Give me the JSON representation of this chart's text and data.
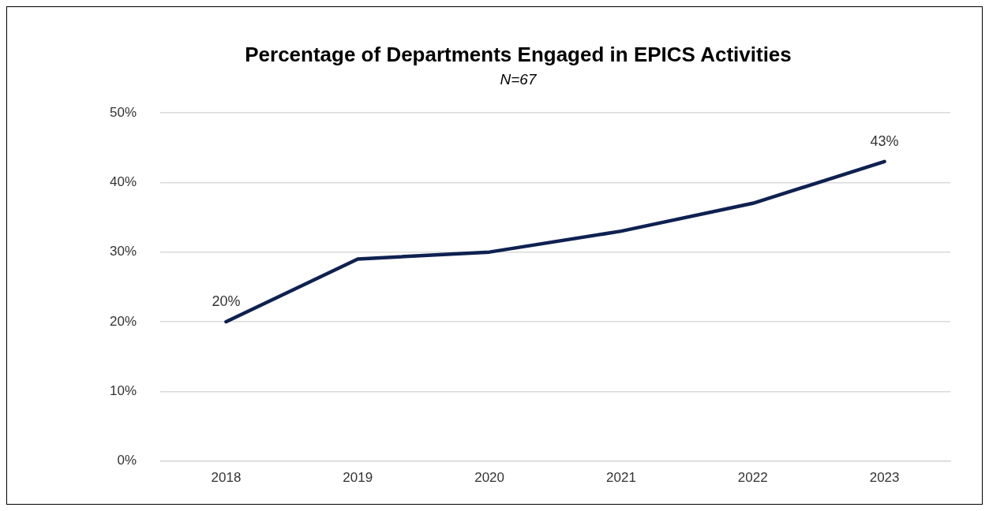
{
  "chart_data": {
    "type": "line",
    "title": "Percentage of Departments Engaged in EPICS Activities",
    "subtitle": "N=67",
    "categories": [
      "2018",
      "2019",
      "2020",
      "2021",
      "2022",
      "2023"
    ],
    "series": [
      {
        "color": "#0e2151",
        "values": [
          20,
          29,
          30,
          33,
          37,
          43
        ],
        "value_labels": [
          "20%",
          null,
          null,
          null,
          null,
          "43%"
        ]
      }
    ],
    "ylim": [
      0,
      50
    ],
    "yticks": [
      {
        "value": 0,
        "label": "0%"
      },
      {
        "value": 10,
        "label": "10%"
      },
      {
        "value": 20,
        "label": "20%"
      },
      {
        "value": 30,
        "label": "30%"
      },
      {
        "value": 40,
        "label": "40%"
      },
      {
        "value": 50,
        "label": "50%"
      }
    ],
    "grid": "y",
    "legend": false,
    "marker": "none",
    "line_style": "solid"
  }
}
